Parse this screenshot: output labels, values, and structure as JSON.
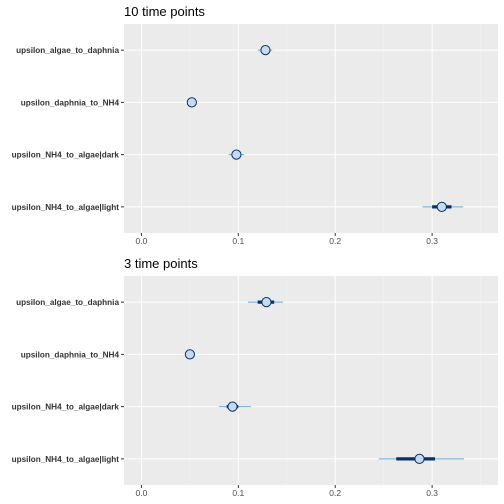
{
  "chart_data": [
    {
      "type": "interval",
      "title": "10 time points",
      "categories": [
        "upsilon_algae_to_daphnia",
        "upsilon_daphnia_to_NH4",
        "upsilon_NH4_to_algae|dark",
        "upsilon_NH4_to_algae|light"
      ],
      "estimates": [
        0.128,
        0.052,
        0.098,
        0.31
      ],
      "inner_intervals": [
        [
          0.127,
          0.129
        ],
        [
          0.051,
          0.053
        ],
        [
          0.097,
          0.099
        ],
        [
          0.3,
          0.32
        ]
      ],
      "outer_intervals": [
        [
          0.12,
          0.135
        ],
        [
          0.048,
          0.056
        ],
        [
          0.09,
          0.106
        ],
        [
          0.29,
          0.332
        ]
      ],
      "xticks": [
        "0.0",
        "0.1",
        "0.2",
        "0.3"
      ],
      "xlim": [
        -0.018,
        0.368
      ],
      "grid": true,
      "colors": {
        "panel": "#ebebeb",
        "outer_interval": "#6baed6",
        "inner_interval": "#08306b",
        "point_fill": "#c6dbef",
        "point_edge": "#08306b"
      }
    },
    {
      "type": "interval",
      "title": "3 time points",
      "categories": [
        "upsilon_algae_to_daphnia",
        "upsilon_daphnia_to_NH4",
        "upsilon_NH4_to_algae|dark",
        "upsilon_NH4_to_algae|light"
      ],
      "estimates": [
        0.129,
        0.05,
        0.094,
        0.287
      ],
      "inner_intervals": [
        [
          0.12,
          0.137
        ],
        [
          0.049,
          0.052
        ],
        [
          0.088,
          0.1
        ],
        [
          0.263,
          0.303
        ]
      ],
      "outer_intervals": [
        [
          0.11,
          0.146
        ],
        [
          0.045,
          0.055
        ],
        [
          0.08,
          0.113
        ],
        [
          0.245,
          0.333
        ]
      ],
      "xticks": [
        "0.0",
        "0.1",
        "0.2",
        "0.3"
      ],
      "xlim": [
        -0.018,
        0.368
      ],
      "grid": true,
      "colors": {
        "panel": "#ebebeb",
        "outer_interval": "#6baed6",
        "inner_interval": "#08306b",
        "point_fill": "#c6dbef",
        "point_edge": "#08306b"
      }
    }
  ]
}
